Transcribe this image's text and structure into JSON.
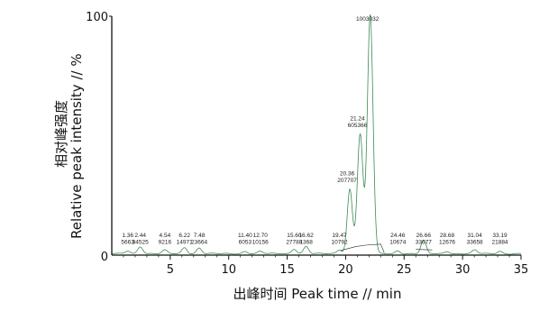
{
  "chart_data": {
    "type": "line",
    "xlabel": "出峰时间 Peak time // min",
    "ylabel": "相对峰强度 Relative peak intensity // %",
    "ylabel_top": "相对峰强度",
    "ylabel_bottom": "Relative peak intensity // %",
    "xlim": [
      0,
      35
    ],
    "ylim": [
      0,
      100
    ],
    "x_ticks": [
      5,
      10,
      15,
      20,
      25,
      30,
      35
    ],
    "y_tick_labels": [
      "0",
      "100"
    ],
    "grid": false,
    "line_color": "#3d8a55",
    "baseline_color": "#222222",
    "peaks": [
      {
        "time": "1.36",
        "area": "5663",
        "x": 1.36,
        "y": 1.2
      },
      {
        "time": "2.44",
        "area": "34525",
        "x": 2.44,
        "y": 3.0
      },
      {
        "time": "4.54",
        "area": "9216",
        "x": 4.54,
        "y": 1.4
      },
      {
        "time": "6.22",
        "area": "14971",
        "x": 6.22,
        "y": 2.6
      },
      {
        "time": "7.48",
        "area": "23664",
        "x": 7.48,
        "y": 2.4
      },
      {
        "time": "11.40",
        "area": "6053",
        "x": 11.4,
        "y": 1.0
      },
      {
        "time": "12.70",
        "area": "10156",
        "x": 12.7,
        "y": 1.0
      },
      {
        "time": "15.60",
        "area": "27788",
        "x": 15.6,
        "y": 2.0
      },
      {
        "time": "16.62",
        "area": "1368",
        "x": 16.62,
        "y": 3.0
      },
      {
        "time": "19.47",
        "area": "10792",
        "x": 19.47,
        "y": 1.6
      },
      {
        "time": "20.36",
        "area": "207707",
        "x": 20.36,
        "y": 27.0
      },
      {
        "time": "21.24",
        "area": "605366",
        "x": 21.24,
        "y": 50.0
      },
      {
        "time": "",
        "area": "1003032",
        "x": 22.1,
        "y": 100.0
      },
      {
        "time": "24.46",
        "area": "10674",
        "x": 24.46,
        "y": 1.2
      },
      {
        "time": "26.66",
        "area": "33677",
        "x": 26.66,
        "y": 5.5
      },
      {
        "time": "28.68",
        "area": "12676",
        "x": 28.68,
        "y": 1.0
      },
      {
        "time": "31.04",
        "area": "33658",
        "x": 31.04,
        "y": 1.5
      },
      {
        "time": "33.19",
        "area": "21884",
        "x": 33.19,
        "y": 1.0
      }
    ]
  }
}
